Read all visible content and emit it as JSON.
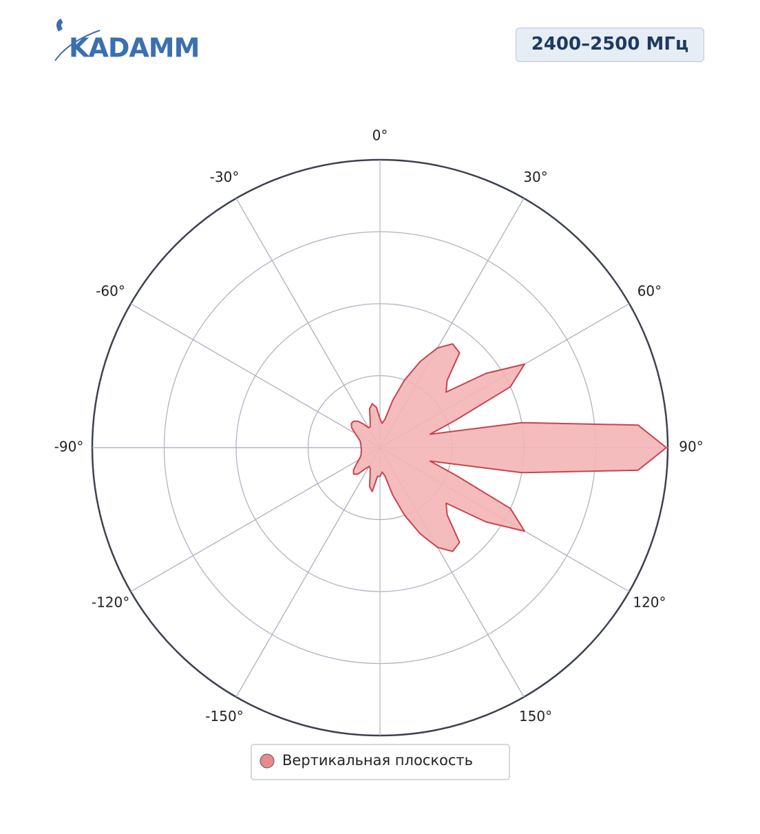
{
  "logo": "KADAMM",
  "badge": "2400–2500 МГц",
  "chart_data": {
    "type": "polar",
    "theta_zero": "top",
    "theta_direction": "clockwise",
    "rlim": [
      0,
      1
    ],
    "rgrid": [
      0.25,
      0.5,
      0.75,
      1
    ],
    "thetaticks": [
      {
        "value": 0,
        "label": "0°"
      },
      {
        "value": 30,
        "label": "30°"
      },
      {
        "value": 60,
        "label": "60°"
      },
      {
        "value": 90,
        "label": "90°"
      },
      {
        "value": 120,
        "label": "120°"
      },
      {
        "value": 150,
        "label": "150°"
      },
      {
        "value": -150,
        "label": "-150°"
      },
      {
        "value": -120,
        "label": "-120°"
      },
      {
        "value": -90,
        "label": "-90°"
      },
      {
        "value": -60,
        "label": "-60°"
      },
      {
        "value": -30,
        "label": "-30°"
      }
    ],
    "theta": [
      -180,
      -175,
      -170,
      -165,
      -160,
      -155,
      -150,
      -145,
      -140,
      -135,
      -130,
      -125,
      -120,
      -115,
      -110,
      -105,
      -100,
      -95,
      -90,
      -85,
      -80,
      -75,
      -70,
      -65,
      -60,
      -55,
      -50,
      -45,
      -40,
      -35,
      -30,
      -25,
      -20,
      -15,
      -10,
      -5,
      0,
      5,
      10,
      15,
      20,
      25,
      30,
      35,
      40,
      45,
      50,
      55,
      60,
      65,
      70,
      75,
      80,
      85,
      90,
      95,
      100,
      105,
      110,
      115,
      120,
      125,
      130,
      135,
      140,
      145,
      150,
      155,
      160,
      165,
      170,
      175
    ],
    "series": [
      {
        "name": "Вертикальная плоскость",
        "color": "#f4b5b7",
        "edge_color": "#c9434a",
        "marker_color": "#e8898c",
        "values": [
          0.1,
          0.1,
          0.155,
          0.14,
          0.1,
          0.08,
          0.075,
          0.09,
          0.12,
          0.13,
          0.12,
          0.1,
          0.085,
          0.075,
          0.07,
          0.068,
          0.066,
          0.065,
          0.066,
          0.066,
          0.068,
          0.07,
          0.075,
          0.085,
          0.1,
          0.12,
          0.13,
          0.13,
          0.12,
          0.1,
          0.08,
          0.08,
          0.1,
          0.14,
          0.155,
          0.14,
          0.1,
          0.085,
          0.1,
          0.17,
          0.25,
          0.33,
          0.4,
          0.44,
          0.43,
          0.33,
          0.3,
          0.45,
          0.58,
          0.5,
          0.28,
          0.18,
          0.5,
          0.9,
          0.995,
          0.9,
          0.5,
          0.18,
          0.28,
          0.5,
          0.58,
          0.45,
          0.3,
          0.33,
          0.43,
          0.44,
          0.4,
          0.33,
          0.25,
          0.17,
          0.1,
          0.085
        ]
      }
    ]
  }
}
